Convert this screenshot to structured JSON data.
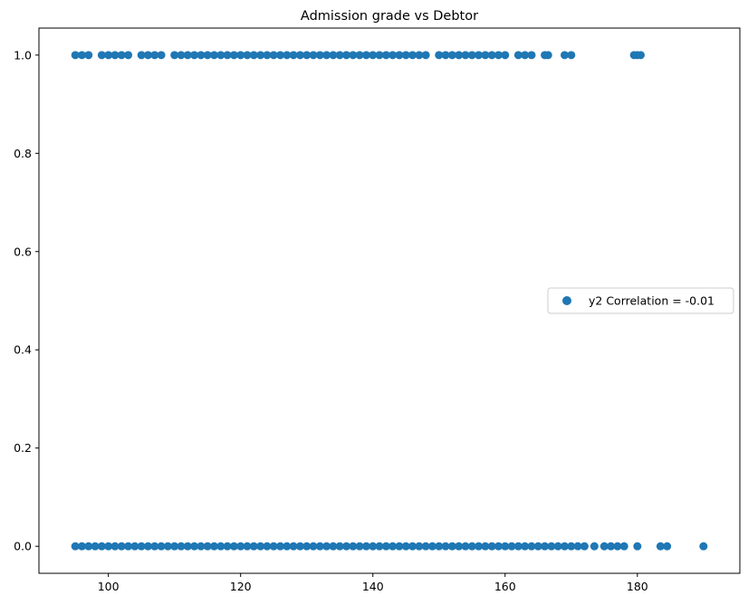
{
  "chart_data": {
    "type": "scatter",
    "title": "Admission grade vs Debtor",
    "xlabel": "",
    "ylabel": "",
    "xlim": [
      89.5,
      195.5
    ],
    "ylim": [
      -0.055,
      1.055
    ],
    "x_ticks": [
      100,
      120,
      140,
      160,
      180
    ],
    "y_ticks": [
      0.0,
      0.2,
      0.4,
      0.6,
      0.8,
      1.0
    ],
    "x_tick_labels": [
      "100",
      "120",
      "140",
      "160",
      "180"
    ],
    "y_tick_labels": [
      "0.0",
      "0.2",
      "0.4",
      "0.6",
      "0.8",
      "1.0"
    ],
    "grid": false,
    "legend_position": "center-right",
    "color": "#1f77b4",
    "series": [
      {
        "name": "y2 Correlation = -0.01",
        "points": [
          [
            95,
            1
          ],
          [
            96,
            1
          ],
          [
            97,
            1
          ],
          [
            99,
            1
          ],
          [
            100,
            1
          ],
          [
            101,
            1
          ],
          [
            102,
            1
          ],
          [
            103,
            1
          ],
          [
            105,
            1
          ],
          [
            106,
            1
          ],
          [
            107,
            1
          ],
          [
            108,
            1
          ],
          [
            110,
            1
          ],
          [
            111,
            1
          ],
          [
            112,
            1
          ],
          [
            113,
            1
          ],
          [
            114,
            1
          ],
          [
            115,
            1
          ],
          [
            116,
            1
          ],
          [
            117,
            1
          ],
          [
            118,
            1
          ],
          [
            119,
            1
          ],
          [
            120,
            1
          ],
          [
            121,
            1
          ],
          [
            122,
            1
          ],
          [
            123,
            1
          ],
          [
            124,
            1
          ],
          [
            125,
            1
          ],
          [
            126,
            1
          ],
          [
            127,
            1
          ],
          [
            128,
            1
          ],
          [
            129,
            1
          ],
          [
            130,
            1
          ],
          [
            131,
            1
          ],
          [
            132,
            1
          ],
          [
            133,
            1
          ],
          [
            134,
            1
          ],
          [
            135,
            1
          ],
          [
            136,
            1
          ],
          [
            137,
            1
          ],
          [
            138,
            1
          ],
          [
            139,
            1
          ],
          [
            140,
            1
          ],
          [
            141,
            1
          ],
          [
            142,
            1
          ],
          [
            143,
            1
          ],
          [
            144,
            1
          ],
          [
            145,
            1
          ],
          [
            146,
            1
          ],
          [
            147,
            1
          ],
          [
            148,
            1
          ],
          [
            150,
            1
          ],
          [
            151,
            1
          ],
          [
            152,
            1
          ],
          [
            153,
            1
          ],
          [
            154,
            1
          ],
          [
            155,
            1
          ],
          [
            156,
            1
          ],
          [
            157,
            1
          ],
          [
            158,
            1
          ],
          [
            159,
            1
          ],
          [
            160,
            1
          ],
          [
            162,
            1
          ],
          [
            163,
            1
          ],
          [
            164,
            1
          ],
          [
            166,
            1
          ],
          [
            166.5,
            1
          ],
          [
            169,
            1
          ],
          [
            170,
            1
          ],
          [
            179.5,
            1
          ],
          [
            180,
            1
          ],
          [
            180.5,
            1
          ],
          [
            95,
            0
          ],
          [
            96,
            0
          ],
          [
            97,
            0
          ],
          [
            98,
            0
          ],
          [
            99,
            0
          ],
          [
            100,
            0
          ],
          [
            101,
            0
          ],
          [
            102,
            0
          ],
          [
            103,
            0
          ],
          [
            104,
            0
          ],
          [
            105,
            0
          ],
          [
            106,
            0
          ],
          [
            107,
            0
          ],
          [
            108,
            0
          ],
          [
            109,
            0
          ],
          [
            110,
            0
          ],
          [
            111,
            0
          ],
          [
            112,
            0
          ],
          [
            113,
            0
          ],
          [
            114,
            0
          ],
          [
            115,
            0
          ],
          [
            116,
            0
          ],
          [
            117,
            0
          ],
          [
            118,
            0
          ],
          [
            119,
            0
          ],
          [
            120,
            0
          ],
          [
            121,
            0
          ],
          [
            122,
            0
          ],
          [
            123,
            0
          ],
          [
            124,
            0
          ],
          [
            125,
            0
          ],
          [
            126,
            0
          ],
          [
            127,
            0
          ],
          [
            128,
            0
          ],
          [
            129,
            0
          ],
          [
            130,
            0
          ],
          [
            131,
            0
          ],
          [
            132,
            0
          ],
          [
            133,
            0
          ],
          [
            134,
            0
          ],
          [
            135,
            0
          ],
          [
            136,
            0
          ],
          [
            137,
            0
          ],
          [
            138,
            0
          ],
          [
            139,
            0
          ],
          [
            140,
            0
          ],
          [
            141,
            0
          ],
          [
            142,
            0
          ],
          [
            143,
            0
          ],
          [
            144,
            0
          ],
          [
            145,
            0
          ],
          [
            146,
            0
          ],
          [
            147,
            0
          ],
          [
            148,
            0
          ],
          [
            149,
            0
          ],
          [
            150,
            0
          ],
          [
            151,
            0
          ],
          [
            152,
            0
          ],
          [
            153,
            0
          ],
          [
            154,
            0
          ],
          [
            155,
            0
          ],
          [
            156,
            0
          ],
          [
            157,
            0
          ],
          [
            158,
            0
          ],
          [
            159,
            0
          ],
          [
            160,
            0
          ],
          [
            161,
            0
          ],
          [
            162,
            0
          ],
          [
            163,
            0
          ],
          [
            164,
            0
          ],
          [
            165,
            0
          ],
          [
            166,
            0
          ],
          [
            167,
            0
          ],
          [
            168,
            0
          ],
          [
            169,
            0
          ],
          [
            170,
            0
          ],
          [
            171,
            0
          ],
          [
            172,
            0
          ],
          [
            173.5,
            0
          ],
          [
            175,
            0
          ],
          [
            176,
            0
          ],
          [
            177,
            0
          ],
          [
            178,
            0
          ],
          [
            180,
            0
          ],
          [
            183.5,
            0
          ],
          [
            184.5,
            0
          ],
          [
            190,
            0
          ]
        ]
      }
    ]
  }
}
